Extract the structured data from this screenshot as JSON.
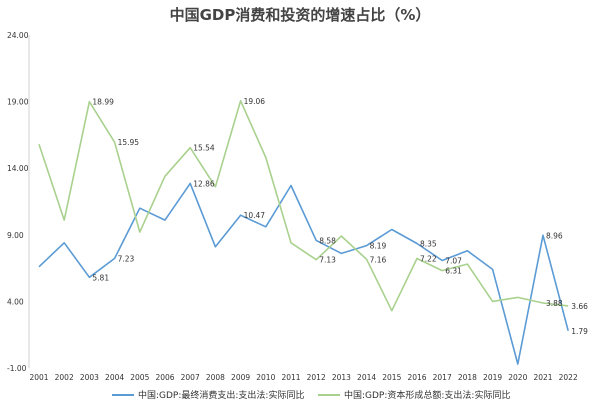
{
  "chart_data": {
    "type": "line",
    "title": "中国GDP消费和投资的增速占比（%）",
    "x": [
      "2001",
      "2002",
      "2003",
      "2004",
      "2005",
      "2006",
      "2007",
      "2008",
      "2009",
      "2010",
      "2011",
      "2012",
      "2013",
      "2014",
      "2015",
      "2016",
      "2017",
      "2018",
      "2019",
      "2020",
      "2021",
      "2022"
    ],
    "yticks": [
      "-1.00",
      "4.00",
      "9.00",
      "14.00",
      "19.00",
      "24.00"
    ],
    "ylim": [
      -1,
      24
    ],
    "grid": false,
    "legend_position": "bottom",
    "series": [
      {
        "name": "中国:GDP:最终消费支出:支出法:实际同比",
        "color": "#5b9bd5",
        "values": [
          6.6,
          8.4,
          5.81,
          7.23,
          11.0,
          10.1,
          12.86,
          8.1,
          10.47,
          9.6,
          12.7,
          8.58,
          7.6,
          8.19,
          9.4,
          8.35,
          7.07,
          7.8,
          6.4,
          -0.7,
          8.96,
          1.79
        ],
        "labels": {
          "2003": "5.81",
          "2004": "7.23",
          "2007": "12.86",
          "2009": "10.47",
          "2012": "8.58",
          "2014": "8.19",
          "2016": "8.35",
          "2017": "7.07",
          "2021": "8.96",
          "2022": "1.79"
        }
      },
      {
        "name": "中国:GDP:资本形成总额:支出法:实际同比",
        "color": "#a9d18e",
        "values": [
          15.8,
          10.1,
          18.99,
          15.95,
          9.2,
          13.4,
          15.54,
          12.6,
          19.06,
          14.8,
          8.4,
          7.13,
          8.9,
          7.16,
          3.3,
          7.22,
          6.31,
          6.8,
          4.0,
          4.3,
          3.88,
          3.66
        ],
        "labels": {
          "2003": "18.99",
          "2004": "15.95",
          "2007": "15.54",
          "2009": "19.06",
          "2012": "7.13",
          "2014": "7.16",
          "2016": "7.22",
          "2017": "6.31",
          "2021": "3.88",
          "2022": "3.66"
        }
      }
    ]
  }
}
